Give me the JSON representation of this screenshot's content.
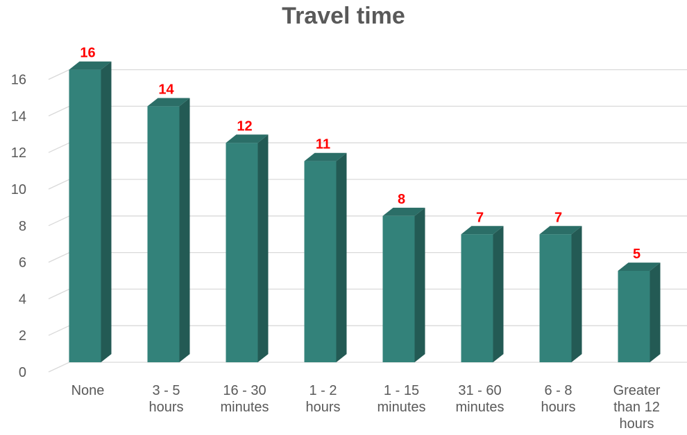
{
  "chart_data": {
    "type": "bar",
    "title": "Travel time",
    "categories": [
      [
        "None"
      ],
      [
        "3 - 5",
        "hours"
      ],
      [
        "16 - 30",
        "minutes"
      ],
      [
        "1 - 2",
        "hours"
      ],
      [
        "1 - 15",
        "minutes"
      ],
      [
        "31 - 60",
        "minutes"
      ],
      [
        "6 - 8",
        "hours"
      ],
      [
        "Greater",
        "than 12",
        "hours"
      ]
    ],
    "values": [
      16,
      14,
      12,
      11,
      8,
      7,
      7,
      5
    ],
    "data_labels": [
      "16",
      "14",
      "12",
      "11",
      "8",
      "7",
      "7",
      "5"
    ],
    "ylim": [
      0,
      16
    ],
    "yticks": [
      0,
      2,
      4,
      6,
      8,
      10,
      12,
      14,
      16
    ],
    "grid": true,
    "legend": "none",
    "bar_style": "3d",
    "colors": {
      "bar_front": "#33827A",
      "bar_side": "#235A54",
      "bar_top": "#2B6E67",
      "data_label": "#FF0000",
      "axis_text": "#595959",
      "grid": "#D9D9D9"
    }
  }
}
